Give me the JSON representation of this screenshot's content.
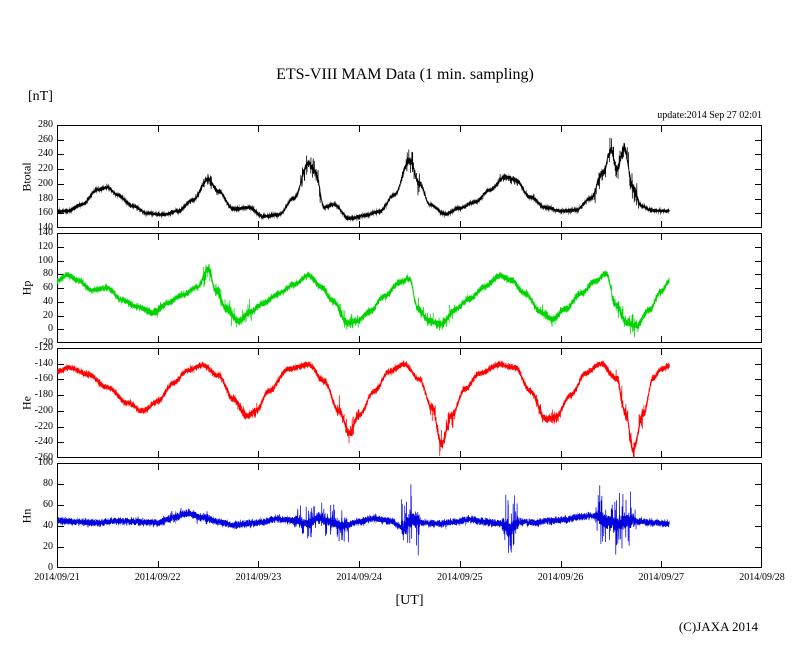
{
  "chart": {
    "title": "ETS-VIII MAM Data (1 min. sampling)",
    "y_unit": "[nT]",
    "update_text": "update:2014 Sep 27 02:01",
    "x_label": "[UT]",
    "copyright": "(C)JAXA 2014"
  },
  "chart_data": {
    "type": "line",
    "title": "ETS-VIII MAM Data (1 min. sampling)",
    "x_unit": "days from 2014/09/21 00:00 UT",
    "x_range": [
      0,
      7
    ],
    "x_tick_labels": [
      "2014/09/21",
      "2014/09/22",
      "2014/09/23",
      "2014/09/24",
      "2014/09/25",
      "2014/09/26",
      "2014/09/27",
      "2014/09/28"
    ],
    "sampling_minutes": 1,
    "data_end": 6.08,
    "grid": false,
    "legend": "none",
    "panels": [
      {
        "name": "Btotal",
        "ylabel": "Btotal",
        "color": "#000000",
        "ylim": [
          140,
          280
        ],
        "ytick": 20,
        "noise": 1.2,
        "keypoints": [
          [
            0,
            162
          ],
          [
            0.1,
            163
          ],
          [
            0.25,
            172
          ],
          [
            0.4,
            192
          ],
          [
            0.5,
            195
          ],
          [
            0.6,
            185
          ],
          [
            0.75,
            170
          ],
          [
            0.9,
            160
          ],
          [
            1.05,
            158
          ],
          [
            1.2,
            163
          ],
          [
            1.35,
            178
          ],
          [
            1.5,
            207
          ],
          [
            1.6,
            190
          ],
          [
            1.75,
            166
          ],
          [
            1.9,
            168
          ],
          [
            2.05,
            156
          ],
          [
            2.2,
            158
          ],
          [
            2.35,
            180
          ],
          [
            2.5,
            228
          ],
          [
            2.57,
            215
          ],
          [
            2.65,
            168
          ],
          [
            2.75,
            172
          ],
          [
            2.9,
            153
          ],
          [
            3.05,
            157
          ],
          [
            3.2,
            162
          ],
          [
            3.35,
            185
          ],
          [
            3.5,
            232
          ],
          [
            3.6,
            200
          ],
          [
            3.7,
            172
          ],
          [
            3.85,
            159
          ],
          [
            4.0,
            167
          ],
          [
            4.15,
            175
          ],
          [
            4.3,
            192
          ],
          [
            4.45,
            210
          ],
          [
            4.55,
            205
          ],
          [
            4.7,
            182
          ],
          [
            4.85,
            168
          ],
          [
            5.0,
            163
          ],
          [
            5.15,
            164
          ],
          [
            5.3,
            180
          ],
          [
            5.42,
            215
          ],
          [
            5.5,
            245
          ],
          [
            5.56,
            220
          ],
          [
            5.63,
            248
          ],
          [
            5.72,
            195
          ],
          [
            5.8,
            170
          ],
          [
            5.9,
            164
          ],
          [
            6.08,
            163
          ]
        ],
        "spiky": [
          [
            1.4,
            1.62,
            5
          ],
          [
            2.42,
            2.62,
            9
          ],
          [
            3.42,
            3.62,
            9
          ],
          [
            4.4,
            4.6,
            4
          ],
          [
            5.33,
            5.78,
            10
          ]
        ]
      },
      {
        "name": "Hp",
        "ylabel": "Hp",
        "color": "#00d400",
        "ylim": [
          -20,
          140
        ],
        "ytick": 20,
        "noise": 2.2,
        "keypoints": [
          [
            0,
            70
          ],
          [
            0.1,
            79
          ],
          [
            0.2,
            72
          ],
          [
            0.35,
            57
          ],
          [
            0.5,
            60
          ],
          [
            0.65,
            42
          ],
          [
            0.8,
            33
          ],
          [
            0.95,
            24
          ],
          [
            1.1,
            38
          ],
          [
            1.25,
            50
          ],
          [
            1.4,
            62
          ],
          [
            1.5,
            88
          ],
          [
            1.58,
            55
          ],
          [
            1.68,
            30
          ],
          [
            1.8,
            12
          ],
          [
            1.92,
            25
          ],
          [
            2.05,
            38
          ],
          [
            2.2,
            52
          ],
          [
            2.35,
            65
          ],
          [
            2.5,
            78
          ],
          [
            2.62,
            62
          ],
          [
            2.75,
            40
          ],
          [
            2.88,
            10
          ],
          [
            2.98,
            12
          ],
          [
            3.1,
            25
          ],
          [
            3.25,
            48
          ],
          [
            3.4,
            68
          ],
          [
            3.5,
            74
          ],
          [
            3.58,
            30
          ],
          [
            3.7,
            12
          ],
          [
            3.82,
            8
          ],
          [
            3.95,
            28
          ],
          [
            4.1,
            45
          ],
          [
            4.25,
            62
          ],
          [
            4.4,
            78
          ],
          [
            4.5,
            72
          ],
          [
            4.65,
            52
          ],
          [
            4.8,
            25
          ],
          [
            4.92,
            14
          ],
          [
            5.05,
            30
          ],
          [
            5.2,
            52
          ],
          [
            5.35,
            70
          ],
          [
            5.45,
            82
          ],
          [
            5.55,
            35
          ],
          [
            5.65,
            10
          ],
          [
            5.75,
            5
          ],
          [
            5.88,
            28
          ],
          [
            6.0,
            55
          ],
          [
            6.08,
            70
          ]
        ],
        "spiky": [
          [
            0.85,
            1.05,
            4
          ],
          [
            1.45,
            1.95,
            8
          ],
          [
            2.8,
            3.0,
            6
          ],
          [
            3.55,
            3.95,
            7
          ],
          [
            4.8,
            5.0,
            5
          ],
          [
            5.5,
            5.8,
            9
          ]
        ]
      },
      {
        "name": "He",
        "ylabel": "He",
        "color": "#ff0000",
        "ylim": [
          -260,
          -120
        ],
        "ytick": 20,
        "noise": 1.8,
        "keypoints": [
          [
            0,
            -150
          ],
          [
            0.12,
            -145
          ],
          [
            0.3,
            -153
          ],
          [
            0.5,
            -170
          ],
          [
            0.7,
            -190
          ],
          [
            0.85,
            -200
          ],
          [
            1.0,
            -188
          ],
          [
            1.15,
            -165
          ],
          [
            1.3,
            -148
          ],
          [
            1.45,
            -142
          ],
          [
            1.6,
            -155
          ],
          [
            1.75,
            -185
          ],
          [
            1.88,
            -207
          ],
          [
            1.98,
            -200
          ],
          [
            2.1,
            -175
          ],
          [
            2.3,
            -147
          ],
          [
            2.5,
            -141
          ],
          [
            2.65,
            -162
          ],
          [
            2.8,
            -200
          ],
          [
            2.9,
            -228
          ],
          [
            3.0,
            -205
          ],
          [
            3.15,
            -175
          ],
          [
            3.3,
            -150
          ],
          [
            3.45,
            -141
          ],
          [
            3.6,
            -160
          ],
          [
            3.72,
            -195
          ],
          [
            3.82,
            -242
          ],
          [
            3.92,
            -205
          ],
          [
            4.05,
            -172
          ],
          [
            4.2,
            -152
          ],
          [
            4.4,
            -141
          ],
          [
            4.55,
            -145
          ],
          [
            4.7,
            -175
          ],
          [
            4.85,
            -210
          ],
          [
            4.95,
            -208
          ],
          [
            5.1,
            -180
          ],
          [
            5.25,
            -152
          ],
          [
            5.4,
            -140
          ],
          [
            5.55,
            -158
          ],
          [
            5.65,
            -205
          ],
          [
            5.72,
            -250
          ],
          [
            5.82,
            -205
          ],
          [
            5.92,
            -158
          ],
          [
            6.0,
            -147
          ],
          [
            6.08,
            -143
          ]
        ],
        "spiky": [
          [
            1.75,
            2.0,
            6
          ],
          [
            2.78,
            3.0,
            8
          ],
          [
            3.7,
            3.95,
            9
          ],
          [
            4.75,
            5.0,
            5
          ],
          [
            5.55,
            5.85,
            9
          ]
        ]
      },
      {
        "name": "Hn",
        "ylabel": "Hn",
        "color": "#0000dd",
        "ylim": [
          0,
          100
        ],
        "ytick": 20,
        "noise": 1.6,
        "keypoints": [
          [
            0,
            45
          ],
          [
            0.2,
            44
          ],
          [
            0.4,
            43
          ],
          [
            0.6,
            45
          ],
          [
            0.8,
            44
          ],
          [
            1.0,
            43
          ],
          [
            1.15,
            48
          ],
          [
            1.3,
            52
          ],
          [
            1.45,
            48
          ],
          [
            1.6,
            44
          ],
          [
            1.75,
            41
          ],
          [
            1.9,
            42
          ],
          [
            2.05,
            44
          ],
          [
            2.2,
            47
          ],
          [
            2.35,
            45
          ],
          [
            2.5,
            42
          ],
          [
            2.6,
            48
          ],
          [
            2.7,
            44
          ],
          [
            2.85,
            40
          ],
          [
            3.0,
            44
          ],
          [
            3.15,
            47
          ],
          [
            3.3,
            45
          ],
          [
            3.45,
            38
          ],
          [
            3.52,
            46
          ],
          [
            3.65,
            43
          ],
          [
            3.8,
            42
          ],
          [
            3.95,
            44
          ],
          [
            4.1,
            46
          ],
          [
            4.25,
            44
          ],
          [
            4.4,
            42
          ],
          [
            4.5,
            38
          ],
          [
            4.6,
            44
          ],
          [
            4.75,
            43
          ],
          [
            4.9,
            45
          ],
          [
            5.05,
            46
          ],
          [
            5.2,
            49
          ],
          [
            5.35,
            50
          ],
          [
            5.45,
            44
          ],
          [
            5.55,
            42
          ],
          [
            5.65,
            45
          ],
          [
            5.8,
            44
          ],
          [
            5.95,
            43
          ],
          [
            6.08,
            42
          ]
        ],
        "spiky": [
          [
            1.05,
            1.5,
            3
          ],
          [
            2.35,
            2.9,
            9
          ],
          [
            3.42,
            3.6,
            16
          ],
          [
            4.42,
            4.58,
            16
          ],
          [
            5.35,
            5.75,
            15
          ]
        ]
      }
    ]
  }
}
